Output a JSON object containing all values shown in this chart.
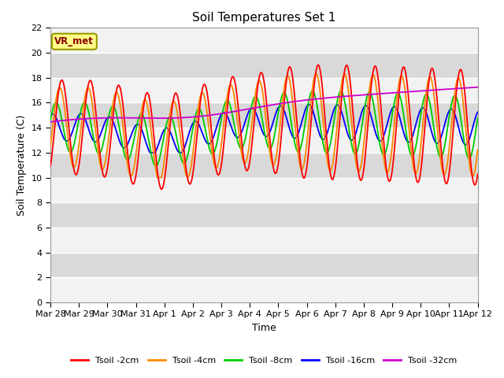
{
  "title": "Soil Temperatures Set 1",
  "xlabel": "Time",
  "ylabel": "Soil Temperature (C)",
  "ylim": [
    0,
    22
  ],
  "yticks": [
    0,
    2,
    4,
    6,
    8,
    10,
    12,
    14,
    16,
    18,
    20,
    22
  ],
  "annotation": "VR_met",
  "bg_color": "#e0e0e0",
  "lines": {
    "Tsoil -2cm": {
      "color": "#ff0000",
      "lw": 1.5
    },
    "Tsoil -4cm": {
      "color": "#ff8800",
      "lw": 1.5
    },
    "Tsoil -8cm": {
      "color": "#00cc00",
      "lw": 1.5
    },
    "Tsoil -16cm": {
      "color": "#0000ff",
      "lw": 1.5
    },
    "Tsoil -32cm": {
      "color": "#cc00cc",
      "lw": 1.5
    }
  },
  "xtick_labels": [
    "Mar 28",
    "Mar 29",
    "Mar 30",
    "Mar 31",
    "Apr 1",
    "Apr 2",
    "Apr 3",
    "Apr 4",
    "Apr 5",
    "Apr 6",
    "Apr 7",
    "Apr 8",
    "Apr 9",
    "Apr 10",
    "Apr 11",
    "Apr 12"
  ]
}
